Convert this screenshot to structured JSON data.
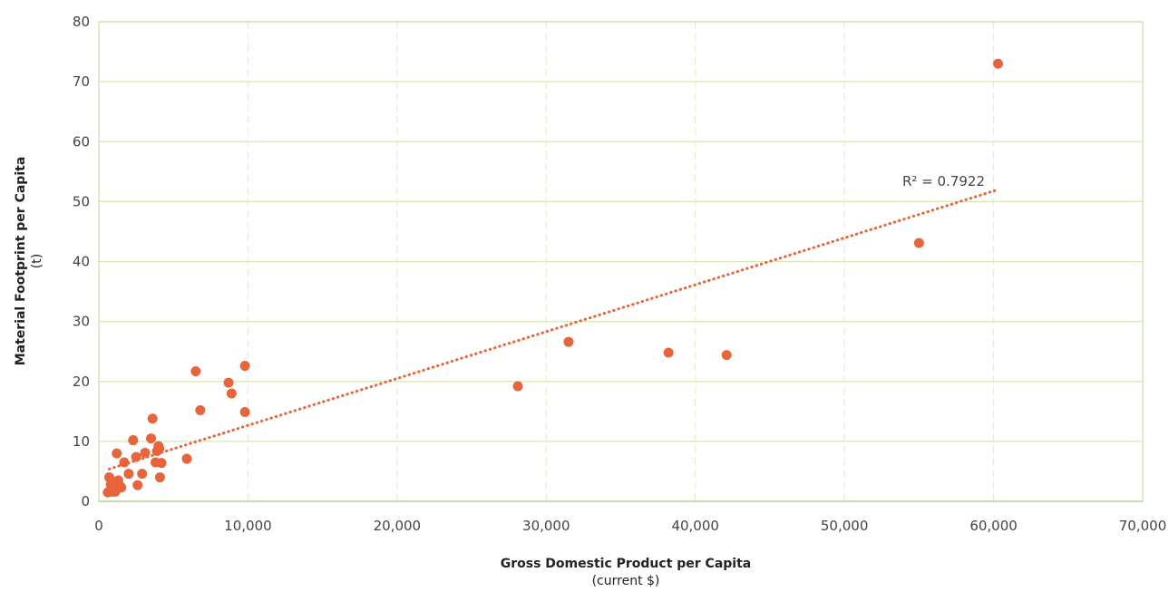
{
  "chart_data": {
    "type": "scatter",
    "xlabel": "Gross Domestic Product per Capita",
    "xlabel_sub": "(current $)",
    "ylabel": "Material Footprint per Capita",
    "ylabel_sub": "(t)",
    "xlim": [
      0,
      70000
    ],
    "ylim": [
      0,
      80
    ],
    "x_ticks": [
      0,
      10000,
      20000,
      30000,
      40000,
      50000,
      60000,
      70000
    ],
    "x_tick_labels": [
      "0",
      "10,000",
      "20,000",
      "30,000",
      "40,000",
      "50,000",
      "60,000",
      "70,000"
    ],
    "y_ticks": [
      0,
      10,
      20,
      30,
      40,
      50,
      60,
      70,
      80
    ],
    "y_tick_labels": [
      "0",
      "10",
      "20",
      "30",
      "40",
      "50",
      "60",
      "70",
      "80"
    ],
    "grid": {
      "horizontal": "solid",
      "vertical": "dashed"
    },
    "colors": {
      "points": "#e8643a",
      "trendline": "#e8643a",
      "grid": "#d6e8b8",
      "frame": "#c9e0a8"
    },
    "points": [
      {
        "x": 600,
        "y": 1.5
      },
      {
        "x": 700,
        "y": 4.0
      },
      {
        "x": 800,
        "y": 2.8
      },
      {
        "x": 900,
        "y": 1.6
      },
      {
        "x": 1100,
        "y": 1.6
      },
      {
        "x": 1200,
        "y": 8.0
      },
      {
        "x": 1300,
        "y": 3.5
      },
      {
        "x": 1400,
        "y": 2.6
      },
      {
        "x": 1500,
        "y": 2.3
      },
      {
        "x": 1700,
        "y": 6.5
      },
      {
        "x": 2000,
        "y": 4.6
      },
      {
        "x": 2300,
        "y": 10.2
      },
      {
        "x": 2500,
        "y": 7.4
      },
      {
        "x": 2600,
        "y": 2.7
      },
      {
        "x": 2900,
        "y": 4.6
      },
      {
        "x": 3100,
        "y": 8.1
      },
      {
        "x": 3500,
        "y": 10.5
      },
      {
        "x": 3600,
        "y": 13.8
      },
      {
        "x": 3800,
        "y": 6.5
      },
      {
        "x": 3900,
        "y": 8.4
      },
      {
        "x": 4000,
        "y": 9.2
      },
      {
        "x": 4100,
        "y": 4.0
      },
      {
        "x": 4200,
        "y": 6.4
      },
      {
        "x": 4050,
        "y": 8.8
      },
      {
        "x": 5900,
        "y": 7.1
      },
      {
        "x": 6500,
        "y": 21.7
      },
      {
        "x": 6800,
        "y": 15.2
      },
      {
        "x": 8700,
        "y": 19.8
      },
      {
        "x": 8900,
        "y": 18.0
      },
      {
        "x": 9800,
        "y": 22.6
      },
      {
        "x": 9800,
        "y": 14.9
      },
      {
        "x": 28100,
        "y": 19.2
      },
      {
        "x": 31500,
        "y": 26.6
      },
      {
        "x": 38200,
        "y": 24.8
      },
      {
        "x": 42100,
        "y": 24.4
      },
      {
        "x": 55000,
        "y": 43.1
      },
      {
        "x": 60300,
        "y": 73.0
      }
    ],
    "trendline": {
      "type": "linear",
      "style": "dotted",
      "x_start": 700,
      "x_end": 60300,
      "y_start": 5.4,
      "y_end": 52.0,
      "label": "R² = 0.7922"
    }
  }
}
